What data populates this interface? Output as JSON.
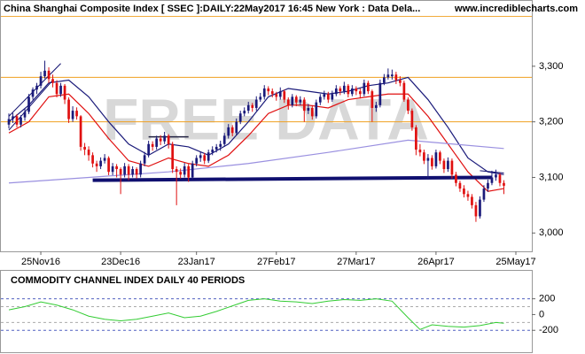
{
  "chart_data": [
    {
      "type": "candlestick",
      "title": "China Shanghai Composite Index [ SSEC ]:DAILY:22May2017 16:45 New York : Data Dela...",
      "source": "www.incrediblecharts.com",
      "watermark": "FREE DATA",
      "up_color": "#1a1a7a",
      "down_color": "#e01010",
      "xlim": [
        -2,
        131
      ],
      "xticks": [
        {
          "value": 8,
          "label": "25Nov16"
        },
        {
          "value": 28,
          "label": "23Dec16"
        },
        {
          "value": 47,
          "label": "23Jan17"
        },
        {
          "value": 67,
          "label": "27Feb17"
        },
        {
          "value": 87,
          "label": "27Mar17"
        },
        {
          "value": 107,
          "label": "26Apr17"
        },
        {
          "value": 127,
          "label": "25May17"
        }
      ],
      "ylim": [
        2967,
        3416
      ],
      "yticks": [
        {
          "value": 3000,
          "label": "3,000"
        },
        {
          "value": 3100,
          "label": "3,100"
        },
        {
          "value": 3200,
          "label": "3,200"
        },
        {
          "value": 3300,
          "label": "3,300"
        }
      ],
      "candles": [
        [
          3195,
          3215,
          3188,
          3205
        ],
        [
          3205,
          3216,
          3198,
          3210
        ],
        [
          3210,
          3214,
          3190,
          3195
        ],
        [
          3195,
          3212,
          3190,
          3208
        ],
        [
          3208,
          3224,
          3202,
          3218
        ],
        [
          3218,
          3250,
          3214,
          3245
        ],
        [
          3245,
          3262,
          3240,
          3258
        ],
        [
          3258,
          3270,
          3250,
          3265
        ],
        [
          3265,
          3290,
          3260,
          3282
        ],
        [
          3282,
          3310,
          3278,
          3292
        ],
        [
          3292,
          3298,
          3270,
          3277
        ],
        [
          3277,
          3285,
          3262,
          3270
        ],
        [
          3270,
          3275,
          3244,
          3250
        ],
        [
          3250,
          3270,
          3245,
          3265
        ],
        [
          3265,
          3268,
          3232,
          3240
        ],
        [
          3240,
          3244,
          3198,
          3205
        ],
        [
          3205,
          3228,
          3200,
          3220
        ],
        [
          3220,
          3226,
          3204,
          3210
        ],
        [
          3210,
          3212,
          3148,
          3155
        ],
        [
          3155,
          3162,
          3140,
          3150
        ],
        [
          3150,
          3156,
          3130,
          3140
        ],
        [
          3140,
          3145,
          3118,
          3125
        ],
        [
          3125,
          3130,
          3110,
          3120
        ],
        [
          3120,
          3136,
          3115,
          3130
        ],
        [
          3130,
          3142,
          3125,
          3135
        ],
        [
          3135,
          3138,
          3104,
          3110
        ],
        [
          3110,
          3126,
          3104,
          3120
        ],
        [
          3120,
          3124,
          3100,
          3115
        ],
        [
          3115,
          3118,
          3070,
          3105
        ],
        [
          3105,
          3126,
          3100,
          3120
        ],
        [
          3120,
          3124,
          3095,
          3105
        ],
        [
          3105,
          3120,
          3100,
          3115
        ],
        [
          3115,
          3118,
          3098,
          3105
        ],
        [
          3105,
          3130,
          3100,
          3125
        ],
        [
          3125,
          3146,
          3120,
          3140
        ],
        [
          3140,
          3166,
          3136,
          3160
        ],
        [
          3160,
          3165,
          3148,
          3155
        ],
        [
          3155,
          3175,
          3150,
          3170
        ],
        [
          3170,
          3176,
          3158,
          3165
        ],
        [
          3165,
          3182,
          3160,
          3175
        ],
        [
          3175,
          3178,
          3152,
          3160
        ],
        [
          3160,
          3164,
          3108,
          3115
        ],
        [
          3115,
          3120,
          3050,
          3110
        ],
        [
          3110,
          3116,
          3098,
          3105
        ],
        [
          3105,
          3126,
          3100,
          3120
        ],
        [
          3120,
          3124,
          3092,
          3100
        ],
        [
          3100,
          3130,
          3096,
          3125
        ],
        [
          3125,
          3140,
          3120,
          3135
        ],
        [
          3135,
          3146,
          3128,
          3140
        ],
        [
          3140,
          3144,
          3124,
          3130
        ],
        [
          3130,
          3150,
          3126,
          3145
        ],
        [
          3145,
          3156,
          3140,
          3150
        ],
        [
          3150,
          3160,
          3145,
          3155
        ],
        [
          3155,
          3166,
          3148,
          3160
        ],
        [
          3160,
          3180,
          3155,
          3175
        ],
        [
          3175,
          3196,
          3170,
          3190
        ],
        [
          3190,
          3194,
          3174,
          3180
        ],
        [
          3180,
          3206,
          3176,
          3200
        ],
        [
          3200,
          3220,
          3196,
          3215
        ],
        [
          3215,
          3226,
          3210,
          3220
        ],
        [
          3220,
          3236,
          3215,
          3230
        ],
        [
          3230,
          3234,
          3218,
          3225
        ],
        [
          3225,
          3246,
          3220,
          3240
        ],
        [
          3240,
          3252,
          3236,
          3245
        ],
        [
          3245,
          3266,
          3240,
          3260
        ],
        [
          3260,
          3264,
          3248,
          3255
        ],
        [
          3255,
          3260,
          3244,
          3250
        ],
        [
          3250,
          3254,
          3238,
          3245
        ],
        [
          3245,
          3262,
          3240,
          3255
        ],
        [
          3255,
          3258,
          3234,
          3240
        ],
        [
          3240,
          3244,
          3222,
          3230
        ],
        [
          3230,
          3250,
          3226,
          3245
        ],
        [
          3245,
          3248,
          3228,
          3235
        ],
        [
          3235,
          3246,
          3230,
          3240
        ],
        [
          3240,
          3244,
          3200,
          3220
        ],
        [
          3220,
          3232,
          3214,
          3225
        ],
        [
          3225,
          3230,
          3204,
          3210
        ],
        [
          3210,
          3240,
          3206,
          3235
        ],
        [
          3235,
          3250,
          3230,
          3245
        ],
        [
          3245,
          3256,
          3240,
          3250
        ],
        [
          3250,
          3254,
          3234,
          3240
        ],
        [
          3240,
          3256,
          3236,
          3250
        ],
        [
          3250,
          3266,
          3246,
          3260
        ],
        [
          3260,
          3264,
          3248,
          3255
        ],
        [
          3255,
          3272,
          3250,
          3265
        ],
        [
          3265,
          3268,
          3244,
          3250
        ],
        [
          3250,
          3266,
          3246,
          3260
        ],
        [
          3260,
          3264,
          3248,
          3255
        ],
        [
          3255,
          3260,
          3242,
          3250
        ],
        [
          3250,
          3276,
          3246,
          3270
        ],
        [
          3270,
          3274,
          3250,
          3255
        ],
        [
          3255,
          3258,
          3200,
          3225
        ],
        [
          3225,
          3236,
          3218,
          3230
        ],
        [
          3230,
          3276,
          3226,
          3270
        ],
        [
          3270,
          3286,
          3266,
          3280
        ],
        [
          3280,
          3296,
          3276,
          3285
        ],
        [
          3282,
          3294,
          3276,
          3285
        ],
        [
          3285,
          3290,
          3268,
          3275
        ],
        [
          3275,
          3282,
          3264,
          3270
        ],
        [
          3270,
          3274,
          3236,
          3240
        ],
        [
          3240,
          3244,
          3214,
          3220
        ],
        [
          3220,
          3224,
          3184,
          3190
        ],
        [
          3190,
          3194,
          3140,
          3150
        ],
        [
          3150,
          3160,
          3138,
          3145
        ],
        [
          3145,
          3150,
          3124,
          3130
        ],
        [
          3130,
          3142,
          3096,
          3135
        ],
        [
          3135,
          3140,
          3114,
          3120
        ],
        [
          3120,
          3150,
          3116,
          3145
        ],
        [
          3145,
          3148,
          3124,
          3130
        ],
        [
          3130,
          3134,
          3108,
          3115
        ],
        [
          3115,
          3136,
          3110,
          3130
        ],
        [
          3130,
          3134,
          3098,
          3105
        ],
        [
          3105,
          3110,
          3084,
          3090
        ],
        [
          3090,
          3094,
          3074,
          3080
        ],
        [
          3080,
          3086,
          3064,
          3070
        ],
        [
          3070,
          3076,
          3058,
          3065
        ],
        [
          3065,
          3070,
          3044,
          3050
        ],
        [
          3050,
          3056,
          3020,
          3030
        ],
        [
          3030,
          3066,
          3026,
          3060
        ],
        [
          3060,
          3086,
          3056,
          3080
        ],
        [
          3080,
          3096,
          3074,
          3090
        ],
        [
          3090,
          3112,
          3086,
          3100
        ],
        [
          3100,
          3114,
          3094,
          3105
        ],
        [
          3105,
          3108,
          3084,
          3090
        ],
        [
          3090,
          3095,
          3070,
          3085
        ]
      ],
      "series": [
        {
          "color": "#1a1a7a",
          "x": [
            0,
            5,
            10,
            15,
            20,
            25,
            30,
            35,
            40,
            45,
            50,
            55,
            60,
            65,
            70,
            75,
            80,
            85,
            90,
            95,
            100,
            105,
            110,
            115,
            120,
            124
          ],
          "values": [
            3200,
            3230,
            3270,
            3275,
            3245,
            3200,
            3160,
            3140,
            3160,
            3155,
            3140,
            3160,
            3200,
            3245,
            3260,
            3255,
            3250,
            3255,
            3265,
            3270,
            3280,
            3240,
            3190,
            3135,
            3110,
            3105
          ]
        },
        {
          "color": "#e01010",
          "x": [
            0,
            5,
            10,
            15,
            20,
            25,
            30,
            35,
            40,
            45,
            50,
            55,
            60,
            65,
            70,
            75,
            80,
            85,
            90,
            95,
            100,
            105,
            110,
            115,
            120,
            124
          ],
          "values": [
            3180,
            3200,
            3245,
            3250,
            3215,
            3170,
            3130,
            3120,
            3135,
            3125,
            3120,
            3140,
            3175,
            3215,
            3230,
            3230,
            3225,
            3240,
            3245,
            3250,
            3250,
            3210,
            3160,
            3110,
            3075,
            3080
          ]
        },
        {
          "color": "#9a90e0",
          "x": [
            0,
            20,
            40,
            60,
            80,
            100,
            124
          ],
          "values": [
            3090,
            3100,
            3110,
            3125,
            3145,
            3167,
            3152
          ]
        }
      ],
      "hlines": [
        {
          "value": 3390,
          "color": "#f0a020"
        },
        {
          "value": 3280,
          "color": "#f0a020"
        },
        {
          "value": 3200,
          "color": "#f0a020"
        }
      ],
      "trendlines": [
        {
          "x": [
            21,
            121
          ],
          "values": [
            3095,
            3100
          ],
          "color": "#101070",
          "width": 4
        },
        {
          "x": [
            35,
            45
          ],
          "values": [
            3173,
            3173
          ],
          "color": "#202040",
          "width": 1.5
        },
        {
          "x": [
            0,
            13
          ],
          "values": [
            3210,
            3305
          ],
          "color": "#101070",
          "width": 1
        },
        {
          "x": [
            0,
            11
          ],
          "values": [
            3185,
            3275
          ],
          "color": "#101070",
          "width": 1
        },
        {
          "x": [
            118,
            124
          ],
          "values": [
            3112,
            3108
          ],
          "color": "#101070",
          "width": 1
        }
      ]
    },
    {
      "type": "line",
      "title": "COMMODITY CHANNEL INDEX DAILY 40 PERIODS",
      "xlim": [
        -2,
        131
      ],
      "ylim": [
        -478,
        555
      ],
      "yticks": [
        -200,
        0,
        200
      ],
      "guides": [
        -200,
        -100,
        100,
        200
      ],
      "series": [
        {
          "color": "#33cc33",
          "x": [
            0,
            4,
            8,
            12,
            16,
            20,
            24,
            28,
            32,
            36,
            40,
            44,
            48,
            52,
            56,
            60,
            64,
            68,
            72,
            76,
            80,
            84,
            88,
            92,
            96,
            100,
            103,
            106,
            110,
            114,
            118,
            122,
            124
          ],
          "values": [
            60,
            100,
            160,
            120,
            60,
            -20,
            -60,
            -80,
            -60,
            -20,
            20,
            -40,
            -20,
            40,
            110,
            180,
            200,
            170,
            160,
            140,
            170,
            190,
            180,
            200,
            170,
            -40,
            -190,
            -130,
            -150,
            -160,
            -140,
            -100,
            -110
          ]
        }
      ]
    }
  ]
}
